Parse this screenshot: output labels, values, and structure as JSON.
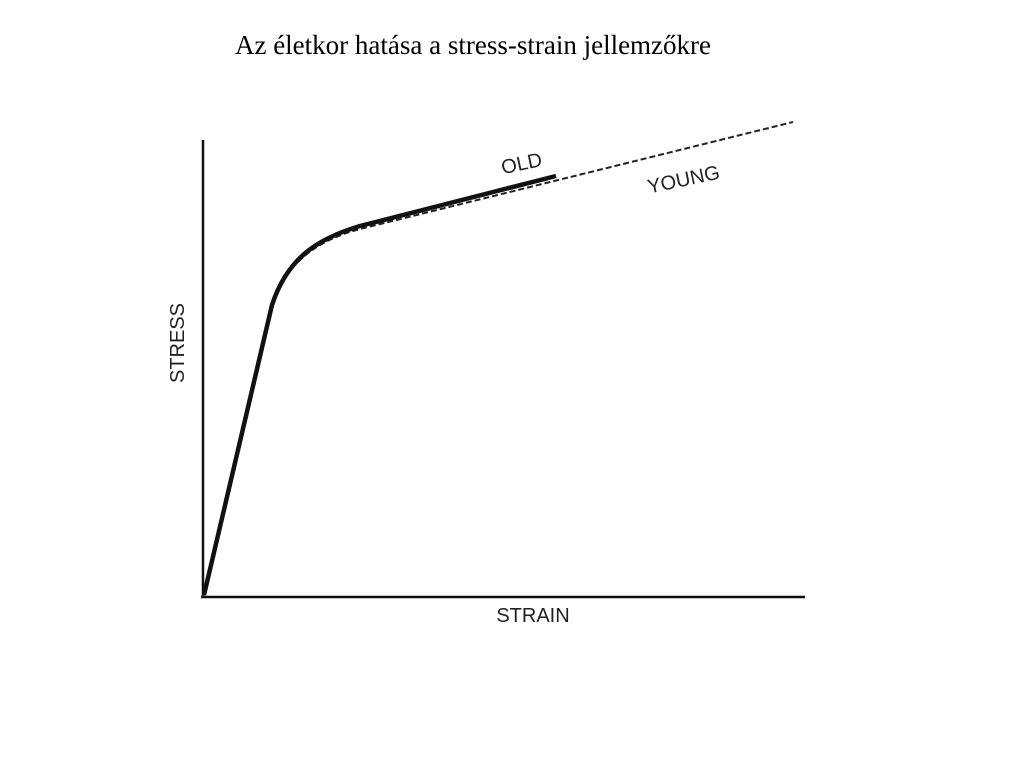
{
  "title": "Az életkor hatása a stress-strain jellemzőkre",
  "diagram": {
    "y_axis_label": "STRESS",
    "x_axis_label": "STRAIN",
    "curves": [
      {
        "label": "OLD"
      },
      {
        "label": "YOUNG"
      }
    ]
  }
}
